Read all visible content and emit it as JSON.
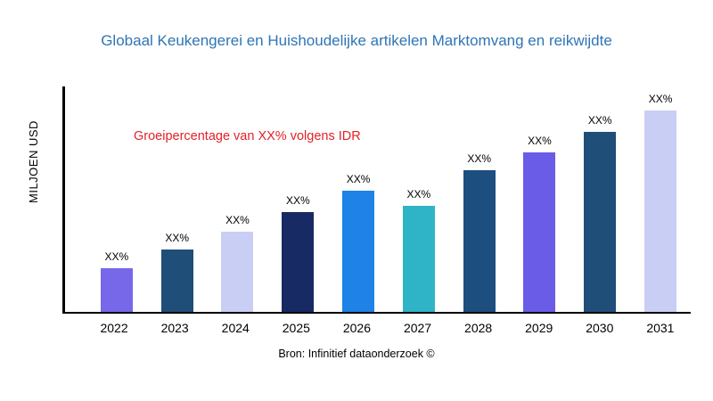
{
  "title": "Globaal Keukengerei en Huishoudelijke artikelen Marktomvang en reikwijdte",
  "annotation": "Groeipercentage van XX% volgens IDR",
  "source": "Bron: Infinitief dataonderzoek ©",
  "colors": {
    "title": "#2E75B6",
    "annotation": "#E32128",
    "axis": "#000000"
  },
  "chart_data": {
    "type": "bar",
    "title": "Globaal Keukengerei en Huishoudelijke artikelen Marktomvang en reikwijdte",
    "xlabel": "",
    "ylabel": "MILJOEN USD",
    "categories": [
      "2022",
      "2023",
      "2024",
      "2025",
      "2026",
      "2027",
      "2028",
      "2029",
      "2030",
      "2031"
    ],
    "values": [
      50,
      72,
      92,
      115,
      140,
      122,
      163,
      184,
      208,
      232
    ],
    "value_labels": [
      "XX%",
      "XX%",
      "XX%",
      "XX%",
      "XX%",
      "XX%",
      "XX%",
      "XX%",
      "XX%",
      "XX%"
    ],
    "bar_colors": [
      "#7668E8",
      "#1F4E79",
      "#C9CEF4",
      "#182A63",
      "#1E82E6",
      "#2FB4C7",
      "#1C4E80",
      "#6A5CE6",
      "#1F4E79",
      "#C9CEF4"
    ],
    "ylim": [
      0,
      260
    ],
    "grid": false,
    "legend": "none",
    "annotation": "Groeipercentage van XX% volgens IDR"
  }
}
